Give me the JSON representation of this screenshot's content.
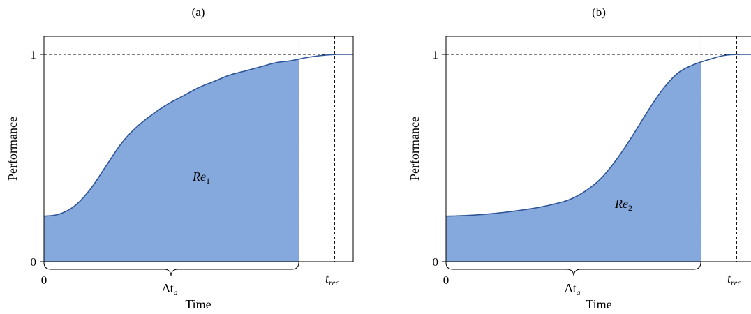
{
  "panels": [
    {
      "panel_label": "(a)",
      "ylabel": "Performance",
      "xlabel": "Time",
      "y_ticks": [
        "0",
        "1"
      ],
      "x_tick": "0",
      "area_label": "Re",
      "area_subscript": "1",
      "interval_label": "Δt",
      "interval_subscript": "a",
      "marker_label": "t",
      "marker_subscript": "rec"
    },
    {
      "panel_label": "(b)",
      "ylabel": "Performance",
      "xlabel": "Time",
      "y_ticks": [
        "0",
        "1"
      ],
      "x_tick": "0",
      "area_label": "Re",
      "area_subscript": "2",
      "interval_label": "Δt",
      "interval_subscript": "a",
      "marker_label": "t",
      "marker_subscript": "rec"
    }
  ],
  "colors": {
    "fill": "#86a9dd",
    "curve": "#2f5597",
    "axis": "#000000",
    "guide": "#000000"
  },
  "chart_data": [
    {
      "type": "area",
      "title": "(a)",
      "xlabel": "Time",
      "ylabel": "Performance",
      "ylim": [
        0,
        1
      ],
      "x": [
        0,
        0.05,
        0.1,
        0.15,
        0.2,
        0.25,
        0.3,
        0.35,
        0.4,
        0.45,
        0.5,
        0.55,
        0.6,
        0.65,
        0.7,
        0.75,
        0.8,
        0.85,
        0.9,
        0.95,
        1.0
      ],
      "series": [
        {
          "values": [
            0.22,
            0.23,
            0.27,
            0.35,
            0.46,
            0.57,
            0.65,
            0.71,
            0.76,
            0.8,
            0.84,
            0.87,
            0.9,
            0.92,
            0.94,
            0.96,
            0.97,
            0.985,
            0.995,
            1.0,
            1.0
          ]
        }
      ],
      "shaded_until": 0.825,
      "guides": {
        "horizontal_y": 1,
        "vertical_x": [
          0.825,
          0.94
        ]
      },
      "annotations": [
        "Re1",
        "Δta",
        "trec"
      ]
    },
    {
      "type": "area",
      "title": "(b)",
      "xlabel": "Time",
      "ylabel": "Performance",
      "ylim": [
        0,
        1
      ],
      "x": [
        0,
        0.05,
        0.1,
        0.15,
        0.2,
        0.25,
        0.3,
        0.35,
        0.4,
        0.45,
        0.5,
        0.55,
        0.6,
        0.65,
        0.7,
        0.75,
        0.8,
        0.85,
        0.9,
        0.95,
        1.0
      ],
      "series": [
        {
          "values": [
            0.22,
            0.222,
            0.226,
            0.232,
            0.24,
            0.25,
            0.262,
            0.278,
            0.3,
            0.34,
            0.4,
            0.49,
            0.6,
            0.72,
            0.83,
            0.91,
            0.95,
            0.975,
            0.995,
            1.0,
            1.0
          ]
        }
      ],
      "shaded_until": 0.825,
      "guides": {
        "horizontal_y": 1,
        "vertical_x": [
          0.825,
          0.94
        ]
      },
      "annotations": [
        "Re2",
        "Δta",
        "trec"
      ]
    }
  ]
}
